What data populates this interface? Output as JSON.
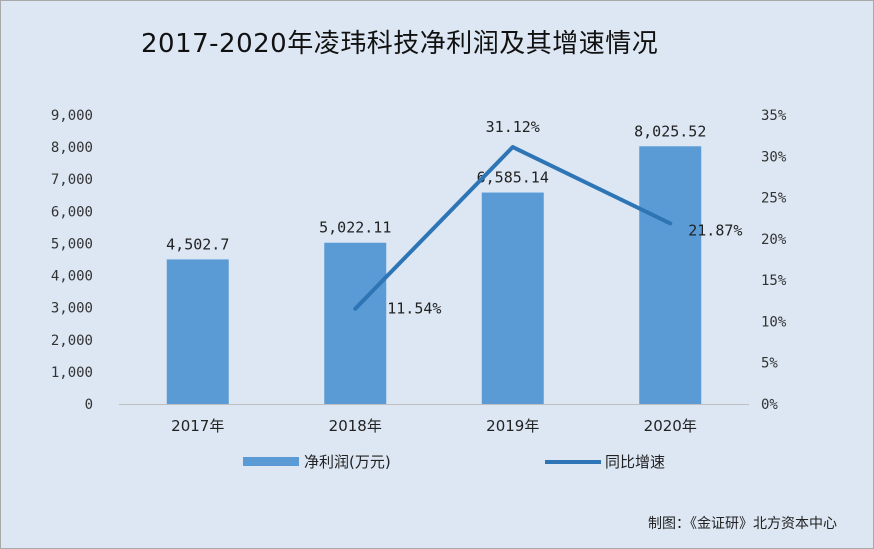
{
  "chart_data": {
    "type": "bar",
    "title": "2017-2020年凌玮科技净利润及其增速情况",
    "categories": [
      "2017年",
      "2018年",
      "2019年",
      "2020年"
    ],
    "series": [
      {
        "name": "净利润(万元)",
        "type": "bar",
        "axis": "left",
        "color": "#5b9bd5",
        "values": [
          4502.7,
          5022.11,
          6585.14,
          8025.52
        ],
        "labels": [
          "4,502.7",
          "5,022.11",
          "6,585.14",
          "8,025.52"
        ]
      },
      {
        "name": "同比增速",
        "type": "line",
        "axis": "right",
        "color": "#2e75b6",
        "values": [
          null,
          11.54,
          31.12,
          21.87
        ],
        "labels": [
          "",
          "11.54%",
          "31.12%",
          "21.87%"
        ]
      }
    ],
    "y_left": {
      "ylim": [
        0,
        9000
      ],
      "ticks": [
        0,
        1000,
        2000,
        3000,
        4000,
        5000,
        6000,
        7000,
        8000,
        9000
      ],
      "tick_labels": [
        "0",
        "1,000",
        "2,000",
        "3,000",
        "4,000",
        "5,000",
        "6,000",
        "7,000",
        "8,000",
        "9,000"
      ]
    },
    "y_right": {
      "ylim": [
        0,
        35
      ],
      "ticks": [
        0,
        5,
        10,
        15,
        20,
        25,
        30,
        35
      ],
      "tick_labels": [
        "0%",
        "5%",
        "10%",
        "15%",
        "20%",
        "25%",
        "30%",
        "35%"
      ]
    },
    "legend": "bottom",
    "grid": false
  },
  "source": "制图：《金证研》北方资本中心"
}
